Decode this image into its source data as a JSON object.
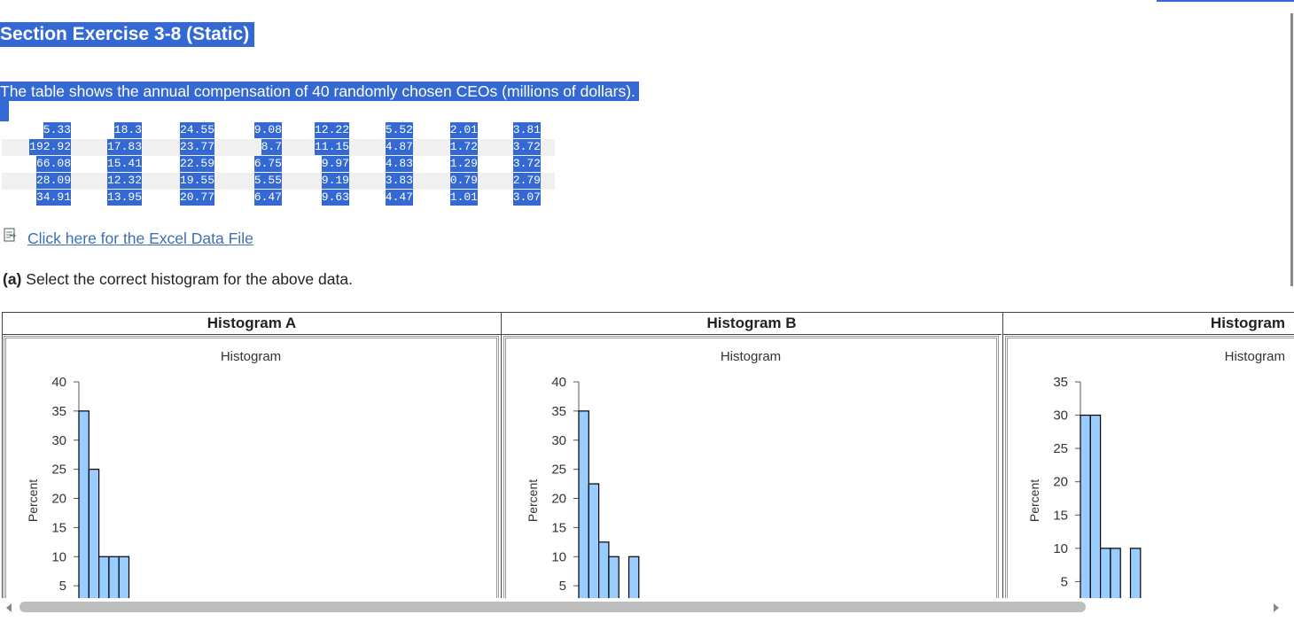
{
  "title": "Section Exercise 3-8 (Static)",
  "intro": "The table shows the annual compensation of 40 randomly chosen CEOs (millions of dollars).",
  "table": {
    "rows": [
      [
        "5.33",
        "18.3",
        "24.55",
        "9.08",
        "12.22",
        "5.52",
        "2.01",
        "3.81"
      ],
      [
        "192.92",
        "17.83",
        "23.77",
        "8.7",
        "11.15",
        "4.87",
        "1.72",
        "3.72"
      ],
      [
        "66.08",
        "15.41",
        "22.59",
        "6.75",
        "9.97",
        "4.83",
        "1.29",
        "3.72"
      ],
      [
        "28.09",
        "12.32",
        "19.55",
        "5.55",
        "9.19",
        "3.83",
        "0.79",
        "2.79"
      ],
      [
        "34.91",
        "13.95",
        "20.77",
        "6.47",
        "9.63",
        "4.47",
        "1.01",
        "3.07"
      ]
    ]
  },
  "link": "Click here for the Excel Data File",
  "question": {
    "part": "(a)",
    "text": "Select the correct histogram for the above data."
  },
  "panels": [
    {
      "header": "Histogram A",
      "chart": {
        "type": "bar",
        "title": "Histogram",
        "y_label": "Percent",
        "color": "#99ccff",
        "ylim": [
          0,
          40
        ],
        "yticks": [
          5,
          10,
          15,
          20,
          25,
          30,
          35,
          40
        ],
        "values": [
          35,
          25,
          10,
          10,
          10
        ]
      }
    },
    {
      "header": "Histogram B",
      "chart": {
        "type": "bar",
        "title": "Histogram",
        "y_label": "Percent",
        "color": "#99ccff",
        "ylim": [
          0,
          40
        ],
        "yticks": [
          5,
          10,
          15,
          20,
          25,
          30,
          35,
          40
        ],
        "values": [
          35,
          22.5,
          12.5,
          10,
          0,
          10
        ]
      }
    },
    {
      "header": "Histogram",
      "chart": {
        "type": "bar",
        "title": "Histogram",
        "y_label": "Percent",
        "color": "#99ccff",
        "ylim": [
          0,
          35
        ],
        "yticks": [
          5,
          10,
          15,
          20,
          25,
          30,
          35
        ],
        "values": [
          30,
          30,
          10,
          10,
          0,
          10
        ]
      }
    }
  ]
}
